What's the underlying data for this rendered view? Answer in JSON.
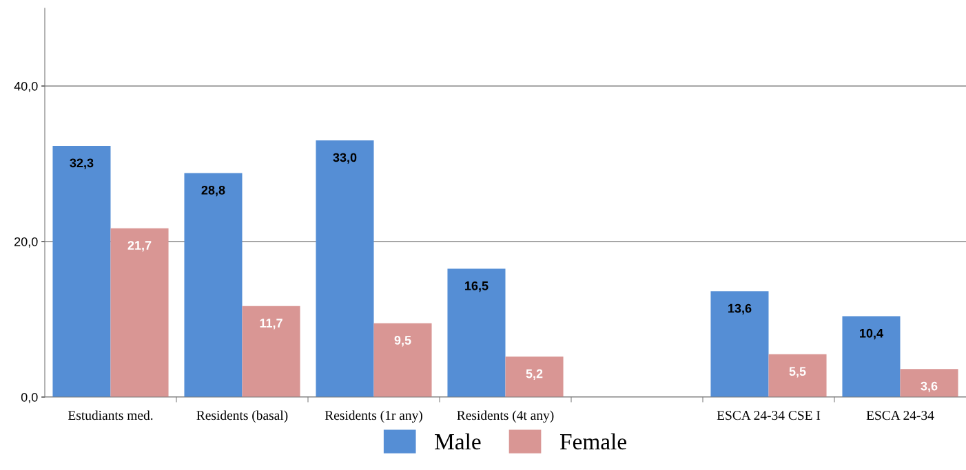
{
  "chart_data": {
    "type": "bar",
    "categories": [
      "Estudiants med.",
      "Residents (basal)",
      "Residents (1r any)",
      "Residents (4t any)",
      null,
      "ESCA 24-34 CSE I",
      "ESCA 24-34"
    ],
    "series": [
      {
        "name": "Male",
        "color": "#558ed5",
        "values": [
          32.3,
          28.8,
          33.0,
          16.5,
          null,
          13.6,
          10.4
        ],
        "value_labels": [
          "32,3",
          "28,8",
          "33,0",
          "16,5",
          null,
          "13,6",
          "10,4"
        ]
      },
      {
        "name": "Female",
        "color": "#d99694",
        "values": [
          21.7,
          11.7,
          9.5,
          5.2,
          null,
          5.5,
          3.6
        ],
        "value_labels": [
          "21,7",
          "11,7",
          "9,5",
          "5,2",
          null,
          "5,5",
          "3,6"
        ]
      }
    ],
    "ylim": [
      0,
      50
    ],
    "yticks": [
      {
        "value": 0,
        "label": "0,0"
      },
      {
        "value": 20,
        "label": "20,0"
      },
      {
        "value": 40,
        "label": "40,0"
      }
    ],
    "grid": "y",
    "legend": "bottom"
  }
}
